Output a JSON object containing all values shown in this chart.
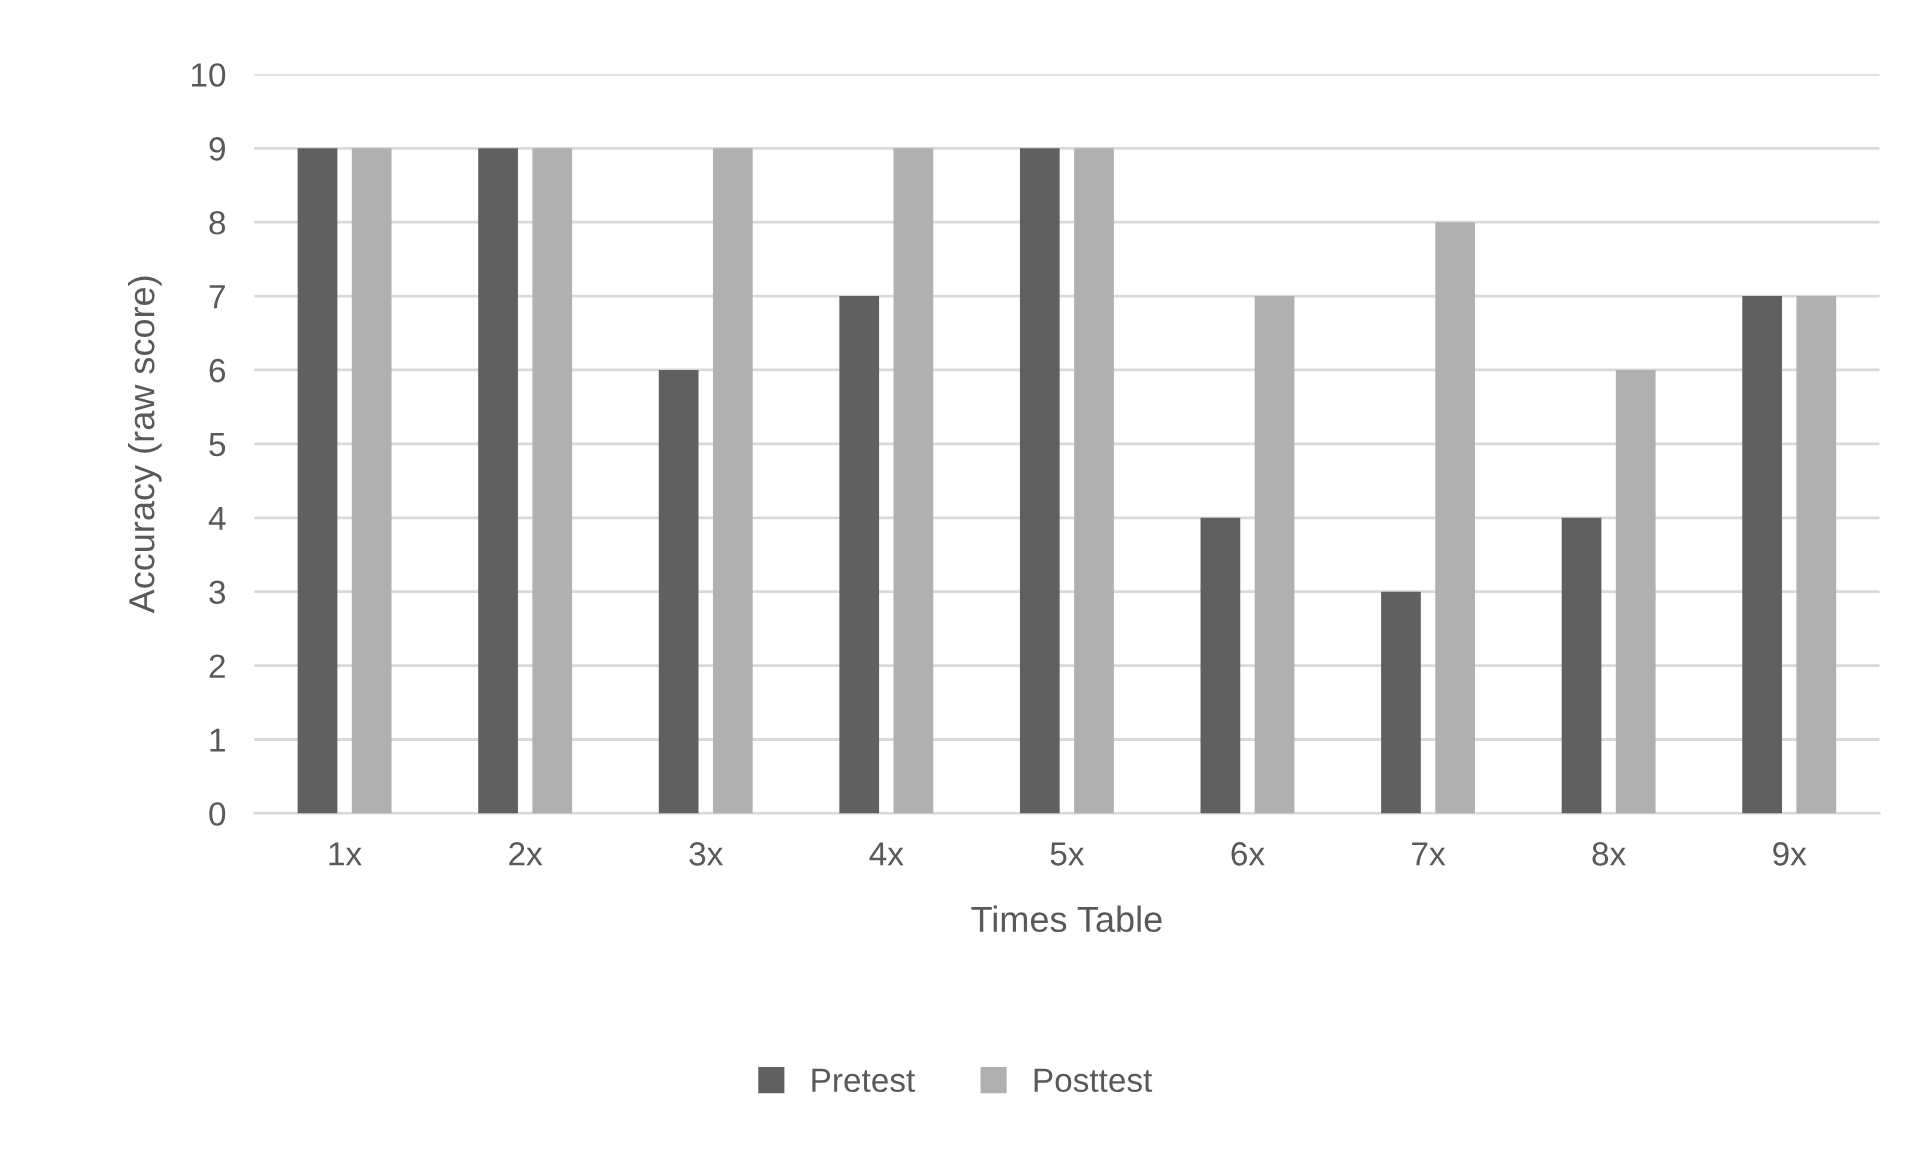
{
  "chart_data": {
    "type": "bar",
    "xlabel": "Times Table",
    "ylabel": "Accuracy (raw score)",
    "categories": [
      "1x",
      "2x",
      "3x",
      "4x",
      "5x",
      "6x",
      "7x",
      "8x",
      "9x"
    ],
    "series": [
      {
        "name": "Pretest",
        "color": "#606060",
        "values": [
          9,
          9,
          6,
          7,
          9,
          4,
          3,
          4,
          7
        ]
      },
      {
        "name": "Posttest",
        "color": "#b0b0b0",
        "values": [
          9,
          9,
          9,
          9,
          9,
          7,
          8,
          6,
          7
        ]
      }
    ],
    "ylim": [
      0,
      10
    ],
    "yticks": [
      0,
      1,
      2,
      3,
      4,
      5,
      6,
      7,
      8,
      9,
      10
    ],
    "grid": "y",
    "legend": "bottom"
  }
}
